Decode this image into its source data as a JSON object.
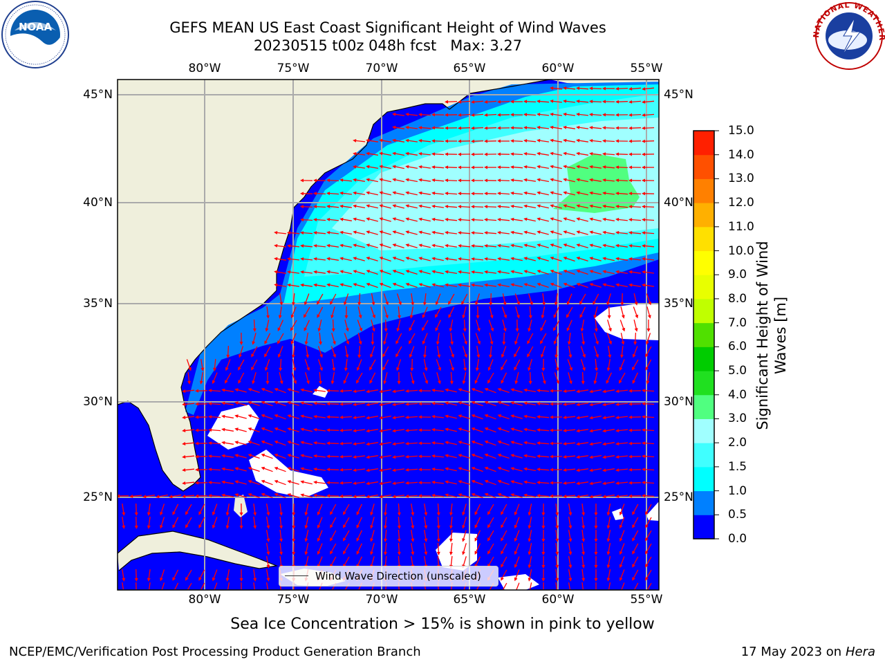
{
  "header": {
    "title_line1": "GEFS MEAN US East Coast Significant Height of Wind Waves",
    "title_line2": "20230515 t00z 048h fcst   Max: 3.27"
  },
  "logos": {
    "left": "noaa-logo",
    "right": "national-weather-service-logo",
    "nws_ring_text": "NATIONAL WEATHER SERVICE"
  },
  "map": {
    "lon_labels": [
      "80°W",
      "75°W",
      "70°W",
      "65°W",
      "60°W",
      "55°W"
    ],
    "lat_labels": [
      "45°N",
      "40°N",
      "35°N",
      "30°N",
      "25°N"
    ],
    "ocean_color": "#0000ff",
    "land_color": "#efefdc",
    "arrow_color": "#ff0000"
  },
  "legend": {
    "label": "Wind Wave Direction (unscaled)"
  },
  "colorbar": {
    "label_line1": "Significant Height of Wind",
    "label_line2": "Waves [m]",
    "ticks": [
      "0.0",
      "0.5",
      "1.0",
      "1.5",
      "2.0",
      "3.0",
      "4.0",
      "5.0",
      "6.0",
      "7.0",
      "8.0",
      "9.0",
      "10.0",
      "11.0",
      "12.0",
      "13.0",
      "14.0",
      "15.0"
    ],
    "colors": [
      "#0000ff",
      "#0080ff",
      "#00ffff",
      "#40ffff",
      "#a0ffff",
      "#50ff80",
      "#20e020",
      "#00cc00",
      "#50e000",
      "#c0ff00",
      "#e8ff00",
      "#ffff00",
      "#ffe000",
      "#ffb000",
      "#ff8000",
      "#ff5000",
      "#ff2000",
      "#ff0000"
    ]
  },
  "note": "Sea Ice Concentration > 15% is shown in pink to yellow",
  "footer": {
    "left": "NCEP/EMC/Verification Post Processing Product Generation Branch",
    "date": "17 May 2023 on",
    "machine": "Hera"
  }
}
